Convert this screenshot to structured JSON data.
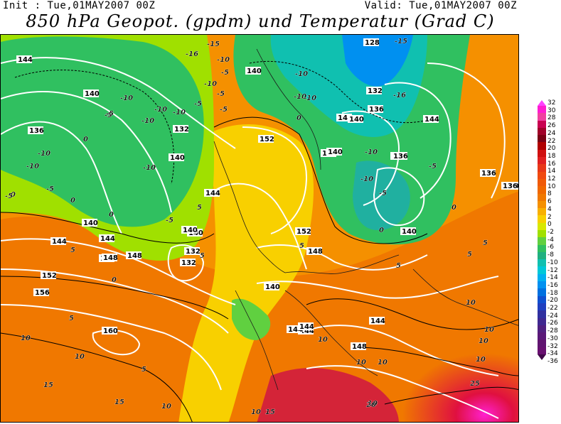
{
  "header": {
    "init": "Init : Tue,01MAY2007 00Z",
    "valid": "Valid: Tue,01MAY2007 00Z",
    "title": "850 hPa Geopot. (gpdm) und Temperatur (Grad C)"
  },
  "map": {
    "geopotential_labels": [
      "128",
      "132",
      "136",
      "140",
      "140",
      "144",
      "144",
      "140",
      "136",
      "140",
      "132",
      "140",
      "144",
      "148",
      "152",
      "140",
      "136",
      "132",
      "140",
      "152",
      "148",
      "140",
      "144",
      "144",
      "148",
      "156",
      "152",
      "160",
      "144",
      "136",
      "140",
      "140",
      "140",
      "148",
      "144",
      "144",
      "132",
      "136",
      "136",
      "144",
      "140",
      "140",
      "140"
    ],
    "temperature_labels": [
      "-15",
      "-16",
      "-10",
      "-5",
      "-10",
      "-10",
      "-5",
      "-10",
      "-16",
      "-10",
      "-5",
      "-10",
      "-10",
      "-5",
      "-15",
      "-10",
      "-5",
      "-5",
      "-5",
      "-10",
      "-10",
      "-10",
      "-5",
      "-10",
      "-5",
      "-10",
      "-5",
      "-10",
      "0",
      "0",
      "0",
      "0",
      "0",
      "0",
      "0",
      "-5",
      "5",
      "5",
      "5",
      "5",
      "5",
      "5",
      "5",
      "0",
      "5",
      "5",
      "10",
      "10",
      "10",
      "10",
      "10",
      "10",
      "10",
      "10",
      "10",
      "10",
      "10",
      "10",
      "15",
      "15",
      "15",
      "20",
      "25"
    ]
  },
  "colorbar": {
    "ticks": [
      "32",
      "30",
      "28",
      "26",
      "24",
      "22",
      "20",
      "18",
      "16",
      "14",
      "12",
      "10",
      "8",
      "6",
      "4",
      "2",
      "0",
      "-2",
      "-4",
      "-6",
      "-8",
      "-10",
      "-12",
      "-14",
      "-16",
      "-18",
      "-20",
      "-22",
      "-24",
      "-26",
      "-28",
      "-30",
      "-32",
      "-34",
      "-36"
    ],
    "colors": [
      "#ff1cd0",
      "#f040a0",
      "#c80050",
      "#a00028",
      "#7a0014",
      "#b00000",
      "#d01010",
      "#e02020",
      "#e83818",
      "#f04a10",
      "#f05a08",
      "#f06800",
      "#f07800",
      "#f59000",
      "#f8b000",
      "#f8d000",
      "#d8e800",
      "#a0e000",
      "#60d040",
      "#30c060",
      "#20b080",
      "#10c0b0",
      "#00c8d8",
      "#00b0f0",
      "#0090f0",
      "#0070e0",
      "#1050d0",
      "#2040c0",
      "#3030a0",
      "#402890",
      "#502080",
      "#5a1878",
      "#601470",
      "#681070"
    ],
    "top_color": "#ff40ff",
    "bottom_color": "#400848"
  }
}
